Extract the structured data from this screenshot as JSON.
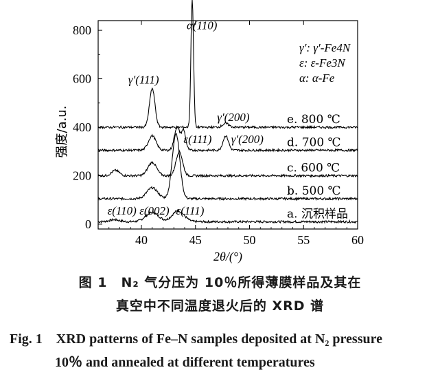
{
  "chart_data": {
    "type": "line",
    "xlabel": "2θ/(°)",
    "ylabel": "强度/a.u.",
    "xlim": [
      36,
      60
    ],
    "ylim": [
      -20,
      840
    ],
    "xticks": [
      40,
      45,
      50,
      55,
      60
    ],
    "yticks": [
      0,
      200,
      400,
      600,
      800
    ],
    "series": [
      {
        "name": "a. 沉积样品",
        "baseline": 10,
        "peaks": [
          [
            37.5,
            8,
            0.5
          ],
          [
            41.0,
            38,
            0.6
          ],
          [
            43.4,
            45,
            0.55
          ]
        ]
      },
      {
        "name": "b. 500 ℃",
        "baseline": 105,
        "peaks": [
          [
            41.0,
            45,
            0.5
          ],
          [
            43.2,
            270,
            0.35
          ]
        ]
      },
      {
        "name": "c. 600 ℃",
        "baseline": 200,
        "peaks": [
          [
            37.6,
            22,
            0.35
          ],
          [
            41.0,
            55,
            0.4
          ],
          [
            43.5,
            100,
            0.3
          ]
        ]
      },
      {
        "name": "d. 700 ℃",
        "baseline": 305,
        "peaks": [
          [
            41.0,
            60,
            0.35
          ],
          [
            43.3,
            95,
            0.25
          ],
          [
            43.9,
            80,
            0.2
          ],
          [
            47.8,
            60,
            0.25
          ]
        ]
      },
      {
        "name": "e. 800 ℃",
        "baseline": 400,
        "peaks": [
          [
            41.0,
            160,
            0.25
          ],
          [
            44.7,
            530,
            0.12
          ],
          [
            47.8,
            15,
            0.3
          ]
        ]
      }
    ],
    "annotations": [
      {
        "text": "α(110)",
        "x": 45.6,
        "y": 805
      },
      {
        "text": "γ′(111)",
        "x": 40.2,
        "y": 580
      },
      {
        "text": "γ′(200)",
        "x": 48.5,
        "y": 425
      },
      {
        "text": "ε(111)",
        "x": 45.2,
        "y": 335
      },
      {
        "text": "γ′(200)",
        "x": 49.8,
        "y": 335
      },
      {
        "text": "ε(110)",
        "x": 38.2,
        "y": 40
      },
      {
        "text": "ε(002)",
        "x": 41.2,
        "y": 40
      },
      {
        "text": "ε(111)",
        "x": 44.5,
        "y": 40
      }
    ],
    "legend": {
      "placement": "top-right",
      "entries": [
        "γ′: γ′-Fe4N",
        "ε: ε-Fe3N",
        "α: α-Fe"
      ]
    }
  },
  "caption": {
    "cn_line1": "图 1　N₂ 气分压为 10％所得薄膜样品及其在",
    "cn_line2": "真空中不同温度退火后的 XRD 谱",
    "en_line1": "Fig. 1　XRD patterns of Fe–N samples deposited at N₂ pressure",
    "en_line2": "10％ and annealed at different temperatures"
  }
}
